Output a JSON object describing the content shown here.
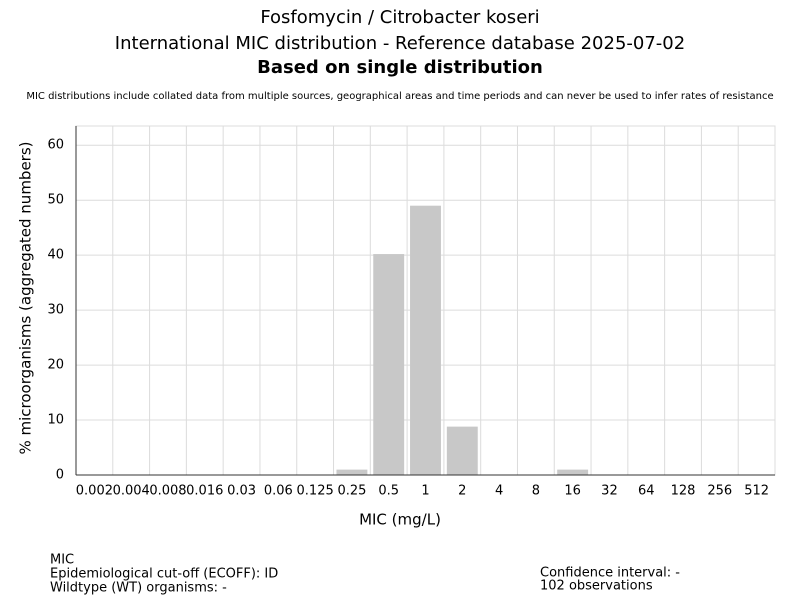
{
  "chart_data": {
    "type": "bar",
    "title_lines": [
      "Fosfomycin / Citrobacter koseri",
      "International MIC distribution - Reference database 2025-07-02",
      "Based on single distribution"
    ],
    "subtitle": "MIC distributions include collated data from multiple sources, geographical areas and time periods and can never be used to infer rates of resistance",
    "x_label": "MIC (mg/L)",
    "y_label": "% microorganisms (aggregated numbers)",
    "categories": [
      "0.002",
      "0.004",
      "0.008",
      "0.016",
      "0.03",
      "0.06",
      "0.125",
      "0.25",
      "0.5",
      "1",
      "2",
      "4",
      "8",
      "16",
      "32",
      "64",
      "128",
      "256",
      "512"
    ],
    "values": [
      0,
      0,
      0,
      0,
      0,
      0,
      0,
      0.98,
      40.2,
      49.0,
      8.8,
      0,
      0,
      0.98,
      0,
      0,
      0,
      0,
      0
    ],
    "color": "#c8c8c8",
    "ylim": [
      0,
      63.5
    ],
    "yticks": [
      0,
      10,
      20,
      30,
      40,
      50,
      60
    ],
    "grid": true,
    "footer_left": [
      "MIC",
      "Epidemiological cut-off (ECOFF): ID",
      "Wildtype (WT) organisms:  -"
    ],
    "footer_right": [
      "Confidence interval: -",
      "102 observations"
    ]
  }
}
